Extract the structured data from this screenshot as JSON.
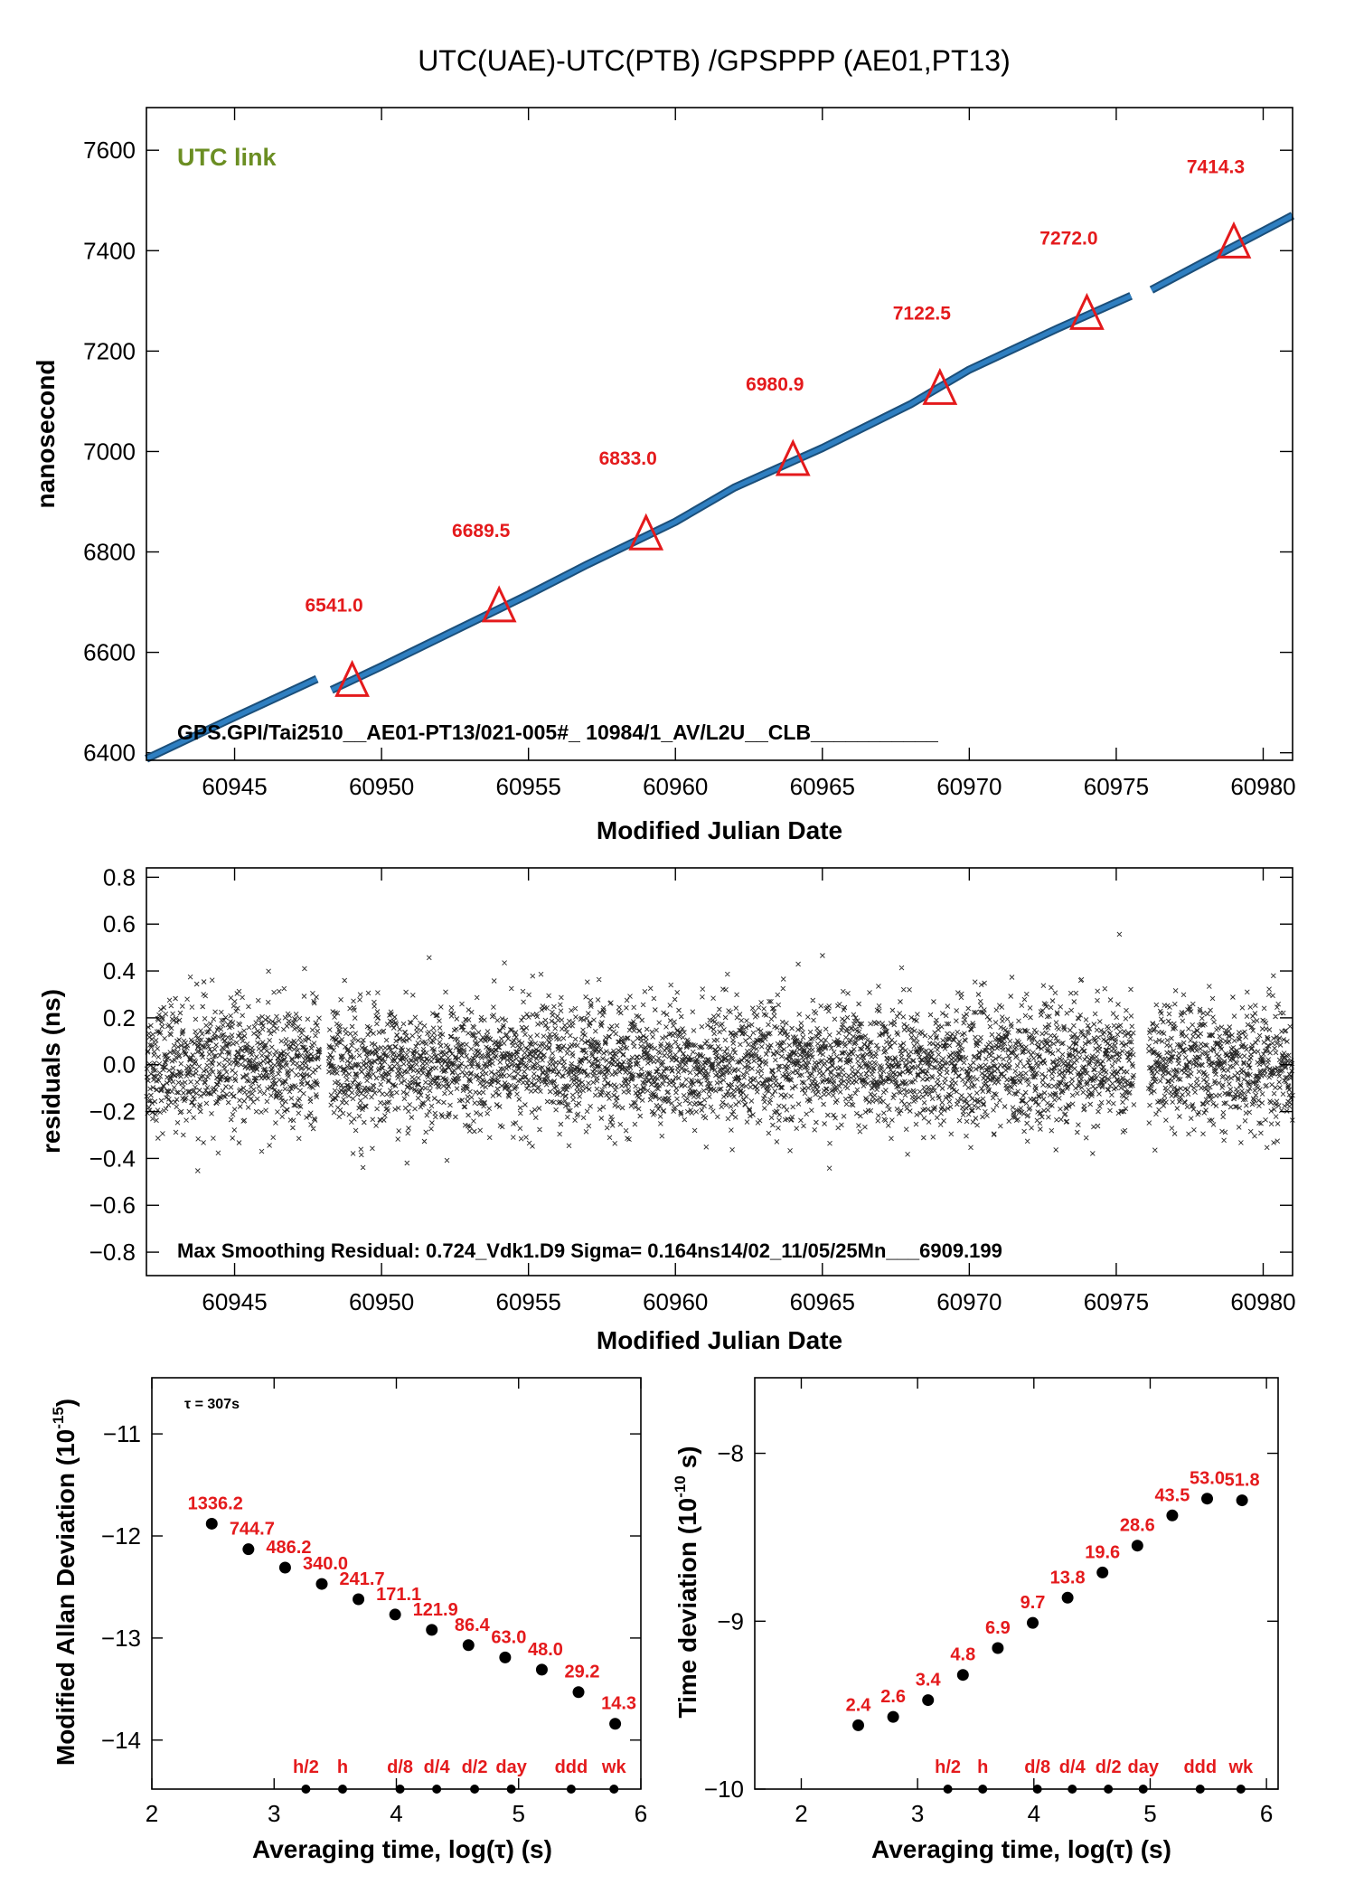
{
  "title": "UTC(UAE)-UTC(PTB)  /GPSPPP  (AE01,PT13)",
  "colors": {
    "series": "#2f7fc1",
    "marker": "#e41a1c",
    "label": "#e41a1c",
    "utc_link": "#6b8e23",
    "points": "#000000"
  },
  "chart_data": [
    {
      "id": "offset",
      "type": "line",
      "title": "UTC(UAE)-UTC(PTB)  /GPSPPP  (AE01,PT13)",
      "xlabel": "Modified Julian Date",
      "ylabel": "nanosecond",
      "xlim": [
        60942,
        60981
      ],
      "ylim": [
        6385,
        7685
      ],
      "xticks": [
        60945,
        60950,
        60955,
        60960,
        60965,
        60970,
        60975,
        60980
      ],
      "yticks": [
        6400,
        6600,
        6800,
        7000,
        7200,
        7400,
        7600
      ],
      "series_points": [
        [
          60942,
          6388
        ],
        [
          60945,
          6471
        ],
        [
          60947.8,
          6547
        ],
        [
          60948.3,
          6525
        ],
        [
          60950,
          6572
        ],
        [
          60955,
          6715
        ],
        [
          60957,
          6775
        ],
        [
          60960,
          6860
        ],
        [
          60962,
          6928
        ],
        [
          60965,
          7007
        ],
        [
          60968,
          7094
        ],
        [
          60970,
          7163
        ],
        [
          60973,
          7245
        ],
        [
          60975.5,
          7310
        ],
        [
          60976.2,
          7322
        ],
        [
          60978,
          7378
        ],
        [
          60981,
          7470
        ]
      ],
      "gaps": [
        [
          60947.9,
          60948.2
        ],
        [
          60975.6,
          60976.1
        ]
      ],
      "markers": [
        {
          "x": 60949,
          "y": 6541.0,
          "label": "6541.0"
        },
        {
          "x": 60954,
          "y": 6689.5,
          "label": "6689.5"
        },
        {
          "x": 60959,
          "y": 6833.0,
          "label": "6833.0"
        },
        {
          "x": 60964,
          "y": 6980.9,
          "label": "6980.9"
        },
        {
          "x": 60969,
          "y": 7122.5,
          "label": "7122.5"
        },
        {
          "x": 60974,
          "y": 7272.0,
          "label": "7272.0"
        },
        {
          "x": 60979,
          "y": 7414.3,
          "label": "7414.3"
        }
      ],
      "annotation_topleft": "UTC link",
      "annotation_bottom": "GPS.GPI/Tai2510__AE01-PT13/021-005#_  10984/1_AV/L2U__CLB___________"
    },
    {
      "id": "residuals",
      "type": "scatter",
      "xlabel": "Modified Julian Date",
      "ylabel": "residuals (ns)",
      "xlim": [
        60942,
        60981
      ],
      "ylim": [
        -0.9,
        0.84
      ],
      "xticks": [
        60945,
        60950,
        60955,
        60960,
        60965,
        60970,
        60975,
        60980
      ],
      "yticks": [
        -0.8,
        -0.6,
        -0.4,
        -0.2,
        0.0,
        0.2,
        0.4,
        0.6,
        0.8
      ],
      "ytick_labels": [
        "−0.8",
        "−0.6",
        "−0.4",
        "−0.2",
        "0.0",
        "0.2",
        "0.4",
        "0.6",
        "0.8"
      ],
      "sigma_ns": 0.164,
      "max_residual": 0.724,
      "gaps": [
        [
          60947.9,
          60948.2
        ],
        [
          60975.6,
          60976.1
        ]
      ],
      "annotation_bottom": "Max Smoothing Residual: 0.724_Vdk1.D9  Sigma= 0.164ns14/02_11/05/25Mn___6909.199"
    },
    {
      "id": "mdev",
      "type": "scatter",
      "xlabel": "Averaging time, log(τ) (s)",
      "ylabel": "Modified Allan Deviation (10",
      "ylabel_exp": "-15",
      "ylabel_close": ")",
      "xlim": [
        2,
        6
      ],
      "ylim": [
        -14.48,
        -10.45
      ],
      "xticks": [
        2,
        3,
        4,
        5,
        6
      ],
      "yticks": [
        -14,
        -13,
        -12,
        -11
      ],
      "ytick_labels": [
        "−14",
        "−13",
        "−12",
        "−11"
      ],
      "tau_note": "τ = 307s",
      "points": [
        {
          "x": 2.49,
          "y": -11.88,
          "label": "1336.2"
        },
        {
          "x": 2.79,
          "y": -12.13,
          "label": "744.7"
        },
        {
          "x": 3.09,
          "y": -12.31,
          "label": "486.2"
        },
        {
          "x": 3.39,
          "y": -12.47,
          "label": "340.0"
        },
        {
          "x": 3.69,
          "y": -12.62,
          "label": "241.7"
        },
        {
          "x": 3.99,
          "y": -12.77,
          "label": "171.1"
        },
        {
          "x": 4.29,
          "y": -12.92,
          "label": "121.9"
        },
        {
          "x": 4.59,
          "y": -13.07,
          "label": "86.4"
        },
        {
          "x": 4.89,
          "y": -13.19,
          "label": "63.0"
        },
        {
          "x": 5.19,
          "y": -13.31,
          "label": "48.0"
        },
        {
          "x": 5.49,
          "y": -13.53,
          "label": "29.2"
        },
        {
          "x": 5.79,
          "y": -13.84,
          "label": "14.3"
        }
      ],
      "time_markers": [
        {
          "x": 3.26,
          "label": "h/2"
        },
        {
          "x": 3.56,
          "label": "h"
        },
        {
          "x": 4.03,
          "label": "d/8"
        },
        {
          "x": 4.33,
          "label": "d/4"
        },
        {
          "x": 4.64,
          "label": "d/2"
        },
        {
          "x": 4.94,
          "label": "day"
        },
        {
          "x": 5.43,
          "label": "ddd"
        },
        {
          "x": 5.78,
          "label": "wk"
        }
      ]
    },
    {
      "id": "tdev",
      "type": "scatter",
      "xlabel": "Averaging time, log(τ) (s)",
      "ylabel": "Time deviation (10",
      "ylabel_exp": "-10",
      "ylabel_close": " s)",
      "xlim": [
        1.6,
        6.1
      ],
      "ylim": [
        -10.0,
        -7.55
      ],
      "xticks": [
        2,
        3,
        4,
        5,
        6
      ],
      "yticks": [
        -10,
        -9,
        -8
      ],
      "ytick_labels": [
        "−10",
        "−9",
        "−8"
      ],
      "points": [
        {
          "x": 2.49,
          "y": -9.62,
          "label": "2.4"
        },
        {
          "x": 2.79,
          "y": -9.57,
          "label": "2.6"
        },
        {
          "x": 3.09,
          "y": -9.47,
          "label": "3.4"
        },
        {
          "x": 3.39,
          "y": -9.32,
          "label": "4.8"
        },
        {
          "x": 3.69,
          "y": -9.16,
          "label": "6.9"
        },
        {
          "x": 3.99,
          "y": -9.01,
          "label": "9.7"
        },
        {
          "x": 4.29,
          "y": -8.86,
          "label": "13.8"
        },
        {
          "x": 4.59,
          "y": -8.71,
          "label": "19.6"
        },
        {
          "x": 4.89,
          "y": -8.55,
          "label": "28.6"
        },
        {
          "x": 5.19,
          "y": -8.37,
          "label": "43.5"
        },
        {
          "x": 5.49,
          "y": -8.27,
          "label": "53.0"
        },
        {
          "x": 5.79,
          "y": -8.28,
          "label": "51.8"
        }
      ],
      "time_markers": [
        {
          "x": 3.26,
          "label": "h/2"
        },
        {
          "x": 3.56,
          "label": "h"
        },
        {
          "x": 4.03,
          "label": "d/8"
        },
        {
          "x": 4.33,
          "label": "d/4"
        },
        {
          "x": 4.64,
          "label": "d/2"
        },
        {
          "x": 4.94,
          "label": "day"
        },
        {
          "x": 5.43,
          "label": "ddd"
        },
        {
          "x": 5.78,
          "label": "wk"
        }
      ]
    }
  ]
}
